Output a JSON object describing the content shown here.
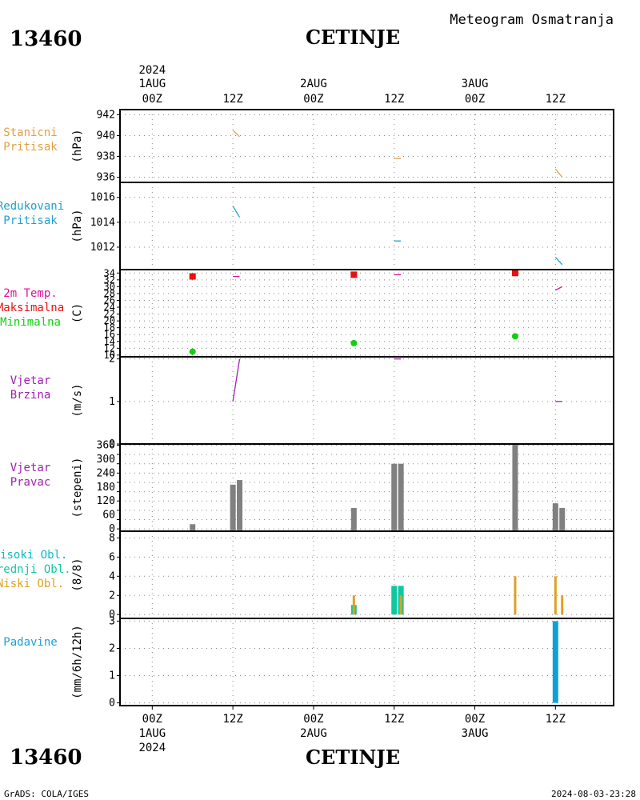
{
  "header": {
    "station_id": "13460",
    "station_name": "CETINJE",
    "product_title": "Meteogram Osmatranja"
  },
  "footer": {
    "station_id": "13460",
    "station_name": "CETINJE",
    "credit": "GrADS: COLA/IGES",
    "timestamp": "2024-08-03-23:28"
  },
  "time_axis": {
    "top_year": "2024",
    "top_labels": [
      {
        "hour": 0,
        "l1": "1AUG",
        "l2": "00Z"
      },
      {
        "hour": 12,
        "l1": "",
        "l2": "12Z"
      },
      {
        "hour": 24,
        "l1": "2AUG",
        "l2": "00Z"
      },
      {
        "hour": 36,
        "l1": "",
        "l2": "12Z"
      },
      {
        "hour": 48,
        "l1": "3AUG",
        "l2": "00Z"
      },
      {
        "hour": 60,
        "l1": "",
        "l2": "12Z"
      }
    ],
    "bottom_labels": [
      {
        "hour": 0,
        "l1": "00Z",
        "l2": "1AUG",
        "l3": "2024"
      },
      {
        "hour": 12,
        "l1": "12Z",
        "l2": "",
        "l3": ""
      },
      {
        "hour": 24,
        "l1": "00Z",
        "l2": "2AUG",
        "l3": ""
      },
      {
        "hour": 36,
        "l1": "12Z",
        "l2": "",
        "l3": ""
      },
      {
        "hour": 48,
        "l1": "00Z",
        "l2": "3AUG",
        "l3": ""
      },
      {
        "hour": 60,
        "l1": "12Z",
        "l2": "",
        "l3": ""
      }
    ]
  },
  "chart_data": [
    {
      "type": "line",
      "panel": "station_pressure",
      "labels": [
        {
          "text": "Stanicni",
          "color": "#e0a040"
        },
        {
          "text": "Pritisak",
          "color": "#e0a040"
        }
      ],
      "ylabel": "(hPa)",
      "ylim": [
        935.5,
        942.5
      ],
      "yticks": [
        936,
        938,
        940,
        942
      ],
      "color": "#e0a040",
      "segments": [
        [
          [
            12,
            940.5
          ],
          [
            13,
            939.9
          ]
        ],
        [
          [
            36,
            937.8
          ],
          [
            37,
            937.8
          ]
        ],
        [
          [
            60,
            936.8
          ],
          [
            61,
            936.0
          ]
        ]
      ]
    },
    {
      "type": "line",
      "panel": "reduced_pressure",
      "labels": [
        {
          "text": "Redukovani",
          "color": "#1fa0d0"
        },
        {
          "text": "Pritisak",
          "color": "#1fa0d0"
        }
      ],
      "ylabel": "(hPa)",
      "ylim": [
        1010.2,
        1017.2
      ],
      "yticks": [
        1012,
        1014,
        1016
      ],
      "color": "#1fa0d0",
      "segments": [
        [
          [
            12,
            1015.3
          ],
          [
            13,
            1014.4
          ]
        ],
        [
          [
            36,
            1012.5
          ],
          [
            37,
            1012.5
          ]
        ],
        [
          [
            60,
            1011.2
          ],
          [
            61,
            1010.6
          ]
        ]
      ]
    },
    {
      "type": "scatter",
      "panel": "temperature",
      "labels": [
        {
          "text": "2m Temp.",
          "color": "#e0109a"
        },
        {
          "text": "Maksimalna",
          "color": "#e81010"
        },
        {
          "text": "Minimalna",
          "color": "#10d010"
        }
      ],
      "ylabel": "(C)",
      "ylim": [
        9.5,
        35
      ],
      "yticks": [
        10,
        12,
        14,
        16,
        18,
        20,
        22,
        24,
        26,
        28,
        30,
        32,
        34
      ],
      "max_color": "#e81010",
      "min_color": "#10d010",
      "line_color": "#e0109a",
      "max_points": [
        [
          6,
          33
        ],
        [
          30,
          33.5
        ],
        [
          54,
          34
        ]
      ],
      "min_points": [
        [
          6,
          11
        ],
        [
          30,
          13.5
        ],
        [
          54,
          15.5
        ]
      ],
      "segments": [
        [
          [
            12,
            33
          ],
          [
            13,
            33
          ]
        ],
        [
          [
            36,
            33.5
          ],
          [
            37,
            33.5
          ]
        ],
        [
          [
            60,
            29
          ],
          [
            61,
            30
          ]
        ]
      ]
    },
    {
      "type": "line",
      "panel": "wind_speed",
      "labels": [
        {
          "text": "Vjetar",
          "color": "#a020b0"
        },
        {
          "text": "Brzina",
          "color": "#a020b0"
        }
      ],
      "ylabel": "(m/s)",
      "ylim": [
        0,
        2.05
      ],
      "yticks": [
        0,
        1,
        2
      ],
      "color": "#a020b0",
      "segments": [
        [
          [
            12,
            1
          ],
          [
            13,
            2
          ]
        ],
        [
          [
            36,
            2
          ],
          [
            37,
            2
          ]
        ],
        [
          [
            60,
            1
          ],
          [
            61,
            1
          ]
        ]
      ]
    },
    {
      "type": "bar",
      "panel": "wind_direction",
      "labels": [
        {
          "text": "Vjetar",
          "color": "#a020b0"
        },
        {
          "text": "Pravac",
          "color": "#a020b0"
        }
      ],
      "ylabel": "(stepeni)",
      "ylim": [
        -10,
        365
      ],
      "yticks": [
        0,
        40,
        80,
        120,
        160,
        200,
        240,
        280,
        320,
        360
      ],
      "ytick_labels": [
        0,
        60,
        120,
        180,
        240,
        300,
        360
      ],
      "color": "#808080",
      "bars": [
        {
          "x": 6,
          "value": 20
        },
        {
          "x": 12,
          "value": 190
        },
        {
          "x": 13,
          "value": 210
        },
        {
          "x": 30,
          "value": 90
        },
        {
          "x": 36,
          "value": 280
        },
        {
          "x": 37,
          "value": 280
        },
        {
          "x": 54,
          "value": 370
        },
        {
          "x": 60,
          "value": 110
        },
        {
          "x": 61,
          "value": 90
        }
      ]
    },
    {
      "type": "bar",
      "panel": "clouds",
      "labels": [
        {
          "text": "Visoki Obl.",
          "color": "#10b8c8"
        },
        {
          "text": "Srednji Obl.",
          "color": "#10c8a0"
        },
        {
          "text": "Niski Obl.",
          "color": "#e0a020"
        }
      ],
      "ylabel": "(8/8)",
      "ylim": [
        -0.4,
        8.7
      ],
      "yticks": [
        0,
        2,
        4,
        6,
        8
      ],
      "colors": {
        "high": "#10b8c8",
        "mid": "#10c8a0",
        "low": "#e0a020"
      },
      "bars": [
        {
          "x": 30,
          "low": 2,
          "mid": 1
        },
        {
          "x": 36,
          "mid": 3
        },
        {
          "x": 37,
          "mid": 3,
          "low": 2
        },
        {
          "x": 54,
          "low": 4
        },
        {
          "x": 60,
          "low": 4
        },
        {
          "x": 61,
          "low": 2
        }
      ]
    },
    {
      "type": "bar",
      "panel": "precipitation",
      "labels": [
        {
          "text": "Padavine",
          "color": "#1fa0d0"
        }
      ],
      "ylabel": "(mm/6h/12h)",
      "ylim": [
        -0.1,
        3.1
      ],
      "yticks": [
        0,
        1,
        2,
        3
      ],
      "color": "#10a0d8",
      "bars": [
        {
          "x": 60,
          "value": 3
        }
      ]
    }
  ]
}
